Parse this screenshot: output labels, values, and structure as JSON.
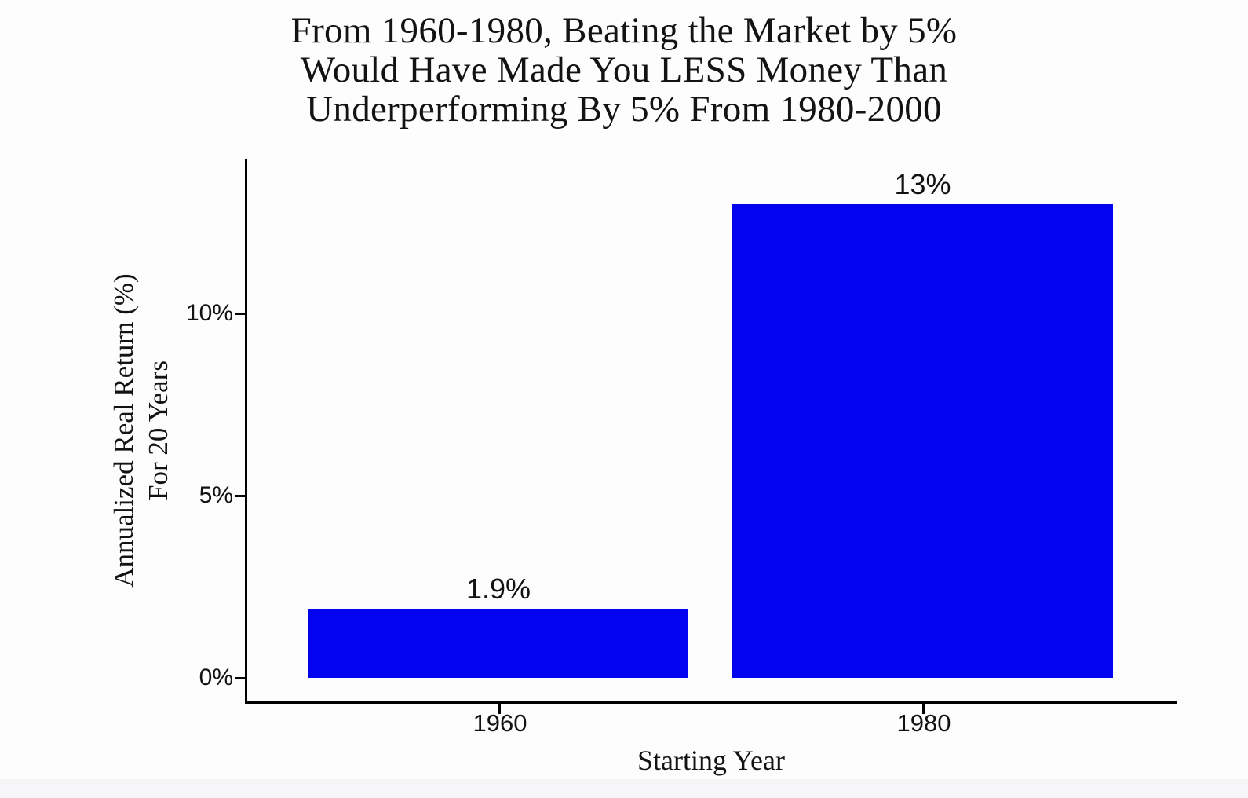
{
  "chart_data": {
    "type": "bar",
    "title": "From 1960-1980, Beating the Market by 5% Would Have Made You LESS Money Than Underperforming By 5% From 1980-2000",
    "title_lines": [
      "From 1960-1980, Beating the Market by 5%",
      "Would Have Made You LESS Money Than",
      "Underperforming By 5% From 1980-2000"
    ],
    "categories": [
      "1960",
      "1980"
    ],
    "values": [
      1.9,
      13
    ],
    "value_labels": [
      "1.9%",
      "13%"
    ],
    "xlabel": "Starting Year",
    "ylabel": "Annualized Real Return (%) For 20 Years",
    "ylabel_lines": [
      "Annualized Real Return (%)",
      "For 20 Years"
    ],
    "y_ticks": [
      {
        "label": "0%",
        "value": 0
      },
      {
        "label": "5%",
        "value": 5
      },
      {
        "label": "10%",
        "value": 10
      }
    ],
    "ylim": [
      0,
      14.2
    ],
    "grid": false,
    "legend_position": "none",
    "bar_color": "#0303ef",
    "axis_color": "#000000",
    "text_color": "#131313",
    "background_color": "#fdfdfd"
  }
}
